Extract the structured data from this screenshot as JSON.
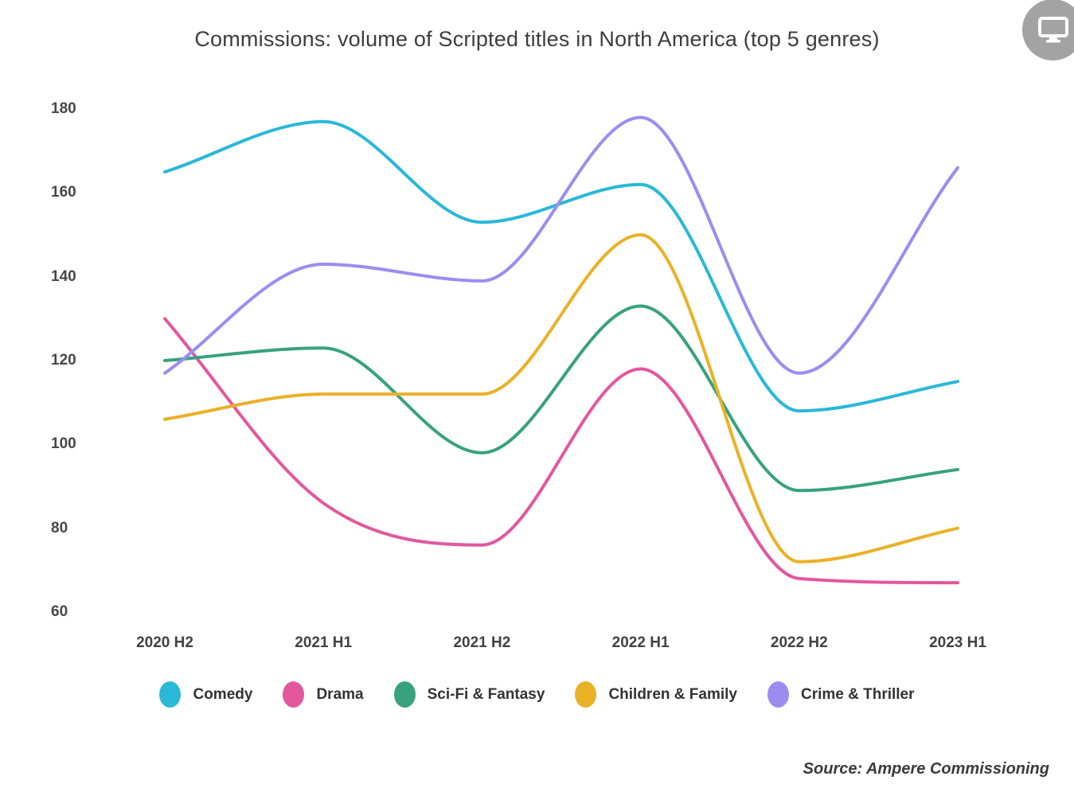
{
  "header": {
    "monitor_icon": "monitor-icon"
  },
  "chart_data": {
    "type": "line",
    "title": "Commissions: volume of Scripted titles in North America (top 5 genres)",
    "categories": [
      "2020 H2",
      "2021 H1",
      "2021 H2",
      "2022 H1",
      "2022 H2",
      "2023 H1"
    ],
    "series": [
      {
        "name": "Comedy",
        "color": "#29b8d8",
        "values": [
          165,
          177,
          153,
          162,
          108,
          115
        ]
      },
      {
        "name": "Drama",
        "color": "#e2579e",
        "values": [
          130,
          86,
          76,
          118,
          68,
          67
        ]
      },
      {
        "name": "Sci-Fi & Fantasy",
        "color": "#38a17e",
        "values": [
          120,
          123,
          98,
          133,
          89,
          94
        ]
      },
      {
        "name": "Children & Family",
        "color": "#eab127",
        "values": [
          106,
          112,
          112,
          150,
          72,
          80
        ]
      },
      {
        "name": "Crime & Thriller",
        "color": "#9c8cf0",
        "values": [
          117,
          143,
          139,
          178,
          117,
          166
        ]
      }
    ],
    "y_ticks": [
      180,
      160,
      140,
      120,
      100,
      80,
      60
    ],
    "ylim": [
      60,
      180
    ],
    "xlabel": "",
    "ylabel": "",
    "grid": false,
    "axis_lines": false,
    "legend_position": "bottom",
    "line_style": "smooth-monotone"
  },
  "footer": {
    "source": "Source: Ampere Commissioning"
  }
}
